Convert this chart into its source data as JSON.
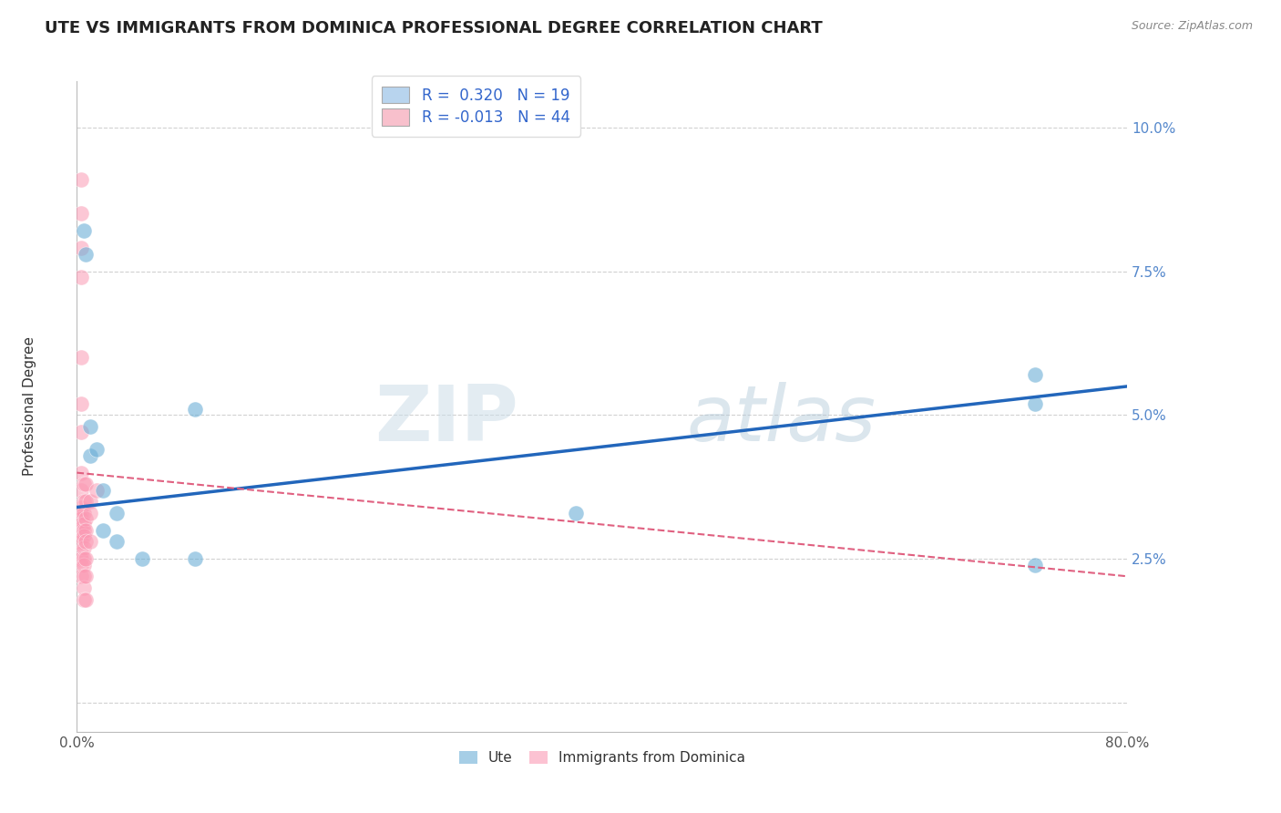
{
  "title": "UTE VS IMMIGRANTS FROM DOMINICA PROFESSIONAL DEGREE CORRELATION CHART",
  "source_text": "Source: ZipAtlas.com",
  "ylabel": "Professional Degree",
  "xlim": [
    0.0,
    0.8
  ],
  "ylim": [
    -0.005,
    0.108
  ],
  "ute_scatter_x": [
    0.005,
    0.007,
    0.01,
    0.01,
    0.015,
    0.02,
    0.02,
    0.03,
    0.03,
    0.05,
    0.09,
    0.09,
    0.38,
    0.73,
    0.73,
    0.73
  ],
  "ute_scatter_y": [
    0.082,
    0.078,
    0.048,
    0.043,
    0.044,
    0.037,
    0.03,
    0.033,
    0.028,
    0.025,
    0.051,
    0.025,
    0.033,
    0.057,
    0.052,
    0.024
  ],
  "dom_scatter_x": [
    0.003,
    0.003,
    0.003,
    0.003,
    0.003,
    0.003,
    0.003,
    0.003,
    0.003,
    0.003,
    0.003,
    0.003,
    0.003,
    0.003,
    0.003,
    0.003,
    0.003,
    0.003,
    0.003,
    0.003,
    0.005,
    0.005,
    0.005,
    0.005,
    0.005,
    0.005,
    0.005,
    0.005,
    0.005,
    0.005,
    0.005,
    0.005,
    0.007,
    0.007,
    0.007,
    0.007,
    0.007,
    0.007,
    0.007,
    0.007,
    0.01,
    0.01,
    0.01,
    0.015
  ],
  "dom_scatter_y": [
    0.091,
    0.085,
    0.079,
    0.074,
    0.06,
    0.052,
    0.047,
    0.04,
    0.037,
    0.034,
    0.033,
    0.032,
    0.031,
    0.03,
    0.029,
    0.028,
    0.026,
    0.025,
    0.024,
    0.022,
    0.038,
    0.035,
    0.033,
    0.031,
    0.03,
    0.029,
    0.027,
    0.025,
    0.024,
    0.022,
    0.02,
    0.018,
    0.038,
    0.035,
    0.032,
    0.03,
    0.028,
    0.025,
    0.022,
    0.018,
    0.035,
    0.033,
    0.028,
    0.037
  ],
  "ute_line_x": [
    0.0,
    0.8
  ],
  "ute_line_y": [
    0.034,
    0.055
  ],
  "dom_line_x": [
    0.0,
    0.8
  ],
  "dom_line_y": [
    0.04,
    0.022
  ],
  "ute_color": "#6baed6",
  "dom_color": "#fb9ab4",
  "ute_line_color": "#2266bb",
  "dom_line_color": "#e06080",
  "grid_color": "#cccccc",
  "watermark_zip": "ZIP",
  "watermark_atlas": "atlas",
  "legend_ute_color": "#b8d4ee",
  "legend_dom_color": "#f8c0cc",
  "bottom_legend_ute": "Ute",
  "bottom_legend_dom": "Immigrants from Dominica",
  "yticks": [
    0.0,
    0.025,
    0.05,
    0.075,
    0.1
  ],
  "yticklabels": [
    "",
    "2.5%",
    "5.0%",
    "7.5%",
    "10.0%"
  ],
  "xticks": [
    0.0,
    0.8
  ],
  "xticklabels": [
    "0.0%",
    "80.0%"
  ],
  "title_fontsize": 13,
  "source_fontsize": 9,
  "tick_fontsize": 11,
  "ylabel_fontsize": 11
}
